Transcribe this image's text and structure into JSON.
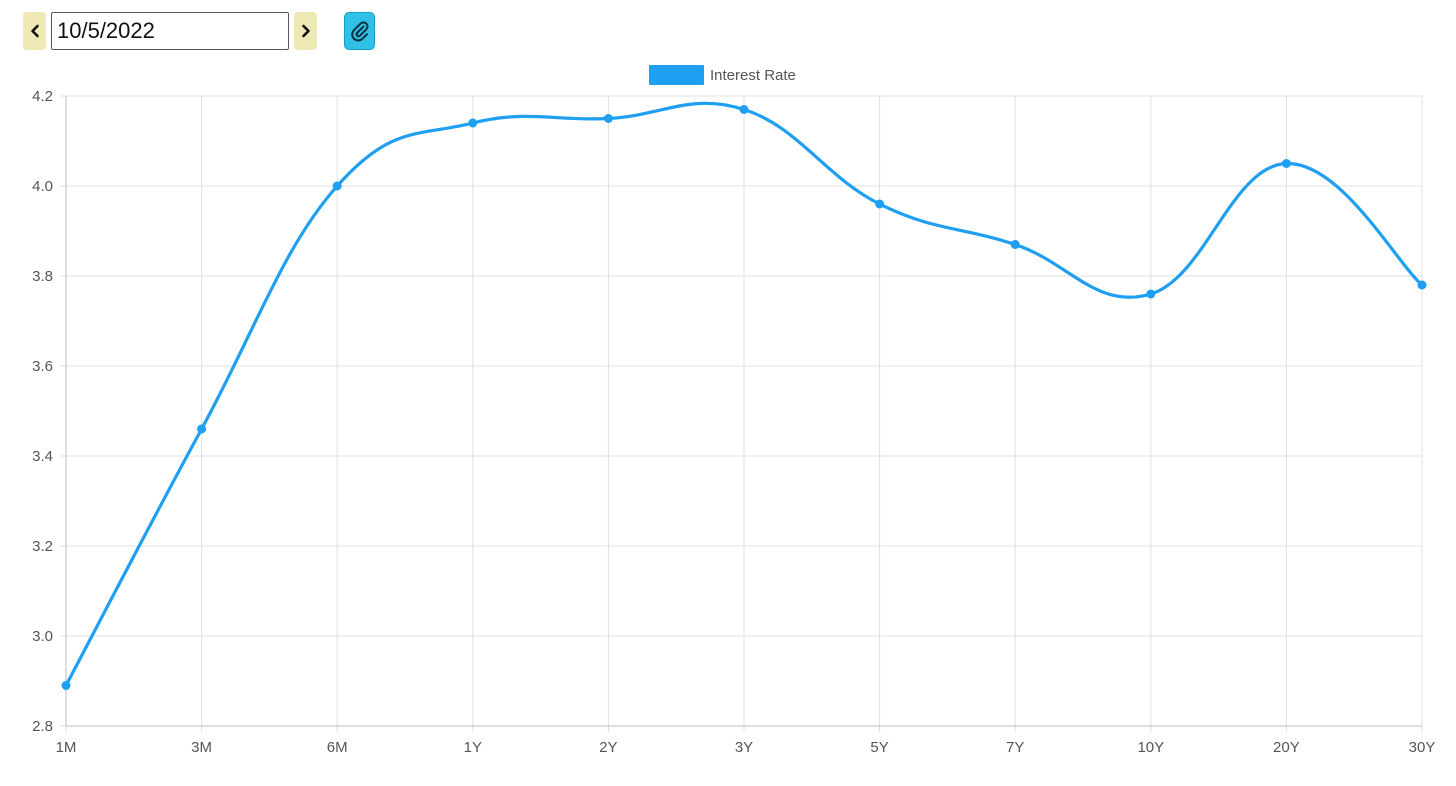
{
  "toolbar": {
    "date_value": "10/5/2022",
    "prev_icon": "chevron-left-icon",
    "next_icon": "chevron-right-icon",
    "attach_icon": "paperclip-icon"
  },
  "colors": {
    "series": "#1e9ff2",
    "nav_button_bg": "#efe9b5",
    "attach_button_bg": "#2fc1e6",
    "grid": "#e0e0e0",
    "axis_text": "#555555"
  },
  "chart_data": {
    "type": "line",
    "categories": [
      "1M",
      "3M",
      "6M",
      "1Y",
      "2Y",
      "3Y",
      "5Y",
      "7Y",
      "10Y",
      "20Y",
      "30Y"
    ],
    "series": [
      {
        "name": "Interest Rate",
        "values": [
          2.89,
          3.46,
          4.0,
          4.14,
          4.15,
          4.17,
          3.96,
          3.87,
          3.76,
          4.05,
          3.78
        ]
      }
    ],
    "ylim": [
      2.8,
      4.2
    ],
    "yticks": [
      "2.8",
      "3.0",
      "3.2",
      "3.4",
      "3.6",
      "3.8",
      "4.0",
      "4.2"
    ],
    "grid": true,
    "legend": "top-center",
    "curve": "smooth"
  }
}
